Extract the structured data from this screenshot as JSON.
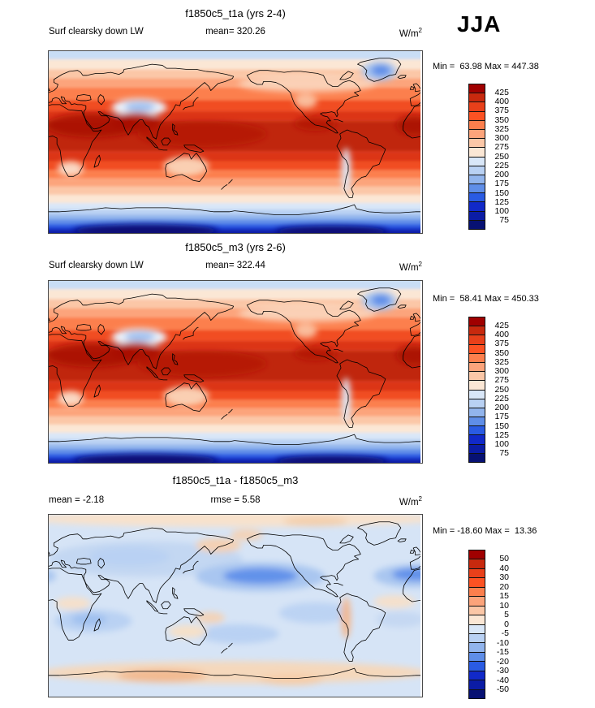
{
  "season_label": "JJA",
  "palette": [
    "#A00000",
    "#C8290E",
    "#E8401A",
    "#FC5223",
    "#FC7F4D",
    "#FCA47B",
    "#FBC7A7",
    "#FBE7D5",
    "#D9E7F8",
    "#B9D1F3",
    "#92B5ED",
    "#5F8EE8",
    "#2A5BE3",
    "#1129C9",
    "#0B1CA5",
    "#071173"
  ],
  "panels": [
    {
      "title": "f1850c5_t1a (yrs 2-4)",
      "left_label": "Surf clearsky down LW",
      "center_stat": "mean= 320.26",
      "units_base": "W/m",
      "units_exp": "2",
      "minmax": "Min =  63.98 Max = 447.38",
      "colorbar_labels": [
        "425",
        "400",
        "375",
        "350",
        "325",
        "300",
        "275",
        "250",
        "225",
        "200",
        "175",
        "150",
        "125",
        "100",
        "75"
      ]
    },
    {
      "title": "f1850c5_m3 (yrs 2-6)",
      "left_label": "Surf clearsky down LW",
      "center_stat": "mean= 322.44",
      "units_base": "W/m",
      "units_exp": "2",
      "minmax": "Min =  58.41 Max = 450.33",
      "colorbar_labels": [
        "425",
        "400",
        "375",
        "350",
        "325",
        "300",
        "275",
        "250",
        "225",
        "200",
        "175",
        "150",
        "125",
        "100",
        "75"
      ]
    },
    {
      "title": "f1850c5_t1a - f1850c5_m3",
      "left_label": "mean =  -2.18",
      "center_stat": "rmse =   5.58",
      "units_base": "W/m",
      "units_exp": "2",
      "minmax": "Min = -18.60 Max =  13.36",
      "colorbar_labels": [
        "50",
        "40",
        "30",
        "20",
        "15",
        "10",
        "5",
        "0",
        "-5",
        "-10",
        "-15",
        "-20",
        "-30",
        "-40",
        "-50"
      ]
    }
  ],
  "chart_data": [
    {
      "type": "heatmap",
      "subtype": "filled-contour world map, equirectangular, longitude 0E-360E left-to-right, latitude 90N top to 90S bottom",
      "title": "f1850c5_t1a (yrs 2-4)",
      "variable": "Surf clearsky down LW",
      "season": "JJA",
      "units": "W/m^2",
      "mean": 320.26,
      "min": 63.98,
      "max": 447.38,
      "contour_levels": [
        75,
        100,
        125,
        150,
        175,
        200,
        225,
        250,
        275,
        300,
        325,
        350,
        375,
        400,
        425
      ],
      "colorbar_colors": [
        "#A00000",
        "#C8290E",
        "#E8401A",
        "#FC5223",
        "#FC7F4D",
        "#FCA47B",
        "#FBC7A7",
        "#FBE7D5",
        "#D9E7F8",
        "#B9D1F3",
        "#92B5ED",
        "#5F8EE8",
        "#2A5BE3",
        "#1129C9",
        "#0B1CA5",
        "#071173"
      ],
      "legend_position": "right",
      "pattern": "zonal gradient: pale blue Arctic (~225-250), cream/salmon NH midlatitudes, deep red 400-425+ across tropics with darkest cores over Sahara/Arabia/India/W-Pacific/Mexico, pale-blue cold spots over Tibet and Greenland, pale strip along Andes, blues over Southern Ocean grading to dark navy (<100) over Antarctica"
    },
    {
      "type": "heatmap",
      "subtype": "filled-contour world map, equirectangular, longitude 0E-360E left-to-right, latitude 90N top to 90S bottom",
      "title": "f1850c5_m3 (yrs 2-6)",
      "variable": "Surf clearsky down LW",
      "season": "JJA",
      "units": "W/m^2",
      "mean": 322.44,
      "min": 58.41,
      "max": 450.33,
      "contour_levels": [
        75,
        100,
        125,
        150,
        175,
        200,
        225,
        250,
        275,
        300,
        325,
        350,
        375,
        400,
        425
      ],
      "colorbar_colors": [
        "#A00000",
        "#C8290E",
        "#E8401A",
        "#FC5223",
        "#FC7F4D",
        "#FCA47B",
        "#FBC7A7",
        "#FBE7D5",
        "#D9E7F8",
        "#B9D1F3",
        "#92B5ED",
        "#5F8EE8",
        "#2A5BE3",
        "#1129C9",
        "#0B1CA5",
        "#071173"
      ],
      "legend_position": "right",
      "pattern": "same zonal structure as top panel; slightly broader deep-red tropical band, cold spots over Tibet and Greenland, navy Antarctica"
    },
    {
      "type": "heatmap",
      "subtype": "difference map (case minus control), equirectangular world map",
      "title": "f1850c5_t1a - f1850c5_m3",
      "variable": "Surf clearsky down LW difference",
      "season": "JJA",
      "units": "W/m^2",
      "mean": -2.18,
      "rmse": 5.58,
      "min": -18.6,
      "max": 13.36,
      "contour_levels": [
        -50,
        -40,
        -30,
        -20,
        -15,
        -10,
        -5,
        0,
        5,
        10,
        15,
        20,
        30,
        40,
        50
      ],
      "colorbar_colors": [
        "#A00000",
        "#C8290E",
        "#E8401A",
        "#FC5223",
        "#FC7F4D",
        "#FCA47B",
        "#FBC7A7",
        "#FBE7D5",
        "#D9E7F8",
        "#B9D1F3",
        "#92B5ED",
        "#5F8EE8",
        "#2A5BE3",
        "#1129C9",
        "#0B1CA5",
        "#071173"
      ],
      "legend_position": "right",
      "pattern": "mostly weak negative (0 to -5, pale blue) with stronger -10 to -15 blobs in the midlatitude North Pacific and North Atlantic; pale positive (0 to +10, orange tints) over Arctic rim, parts of the tropics, along the Andes, and in a band around Antarctica / Southern Ocean"
    }
  ]
}
